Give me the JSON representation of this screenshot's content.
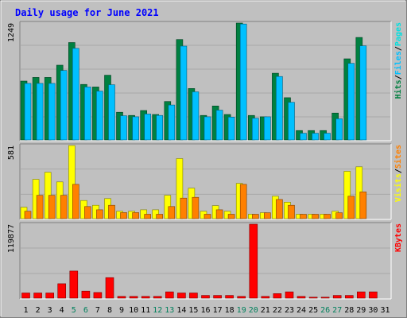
{
  "title": "Daily usage for June 2021",
  "colors": {
    "frame_bg": "#c0c0c0",
    "plot_bg": "#c0c0c0",
    "gridline": "#a8a8a8",
    "title": "#0000ff",
    "hits": "#008040",
    "files": "#00c0ff",
    "pages": "#00e0e0",
    "visits": "#ffff00",
    "sites": "#ff8000",
    "kbytes": "#ff0000",
    "weekend_day": "#00805c",
    "weekday_day": "#000000"
  },
  "chart_data": [
    {
      "type": "bar",
      "name": "hits-files",
      "max_label": "1249",
      "ylim": [
        0,
        1249
      ],
      "categories": [
        "1",
        "2",
        "3",
        "4",
        "5",
        "6",
        "7",
        "8",
        "9",
        "10",
        "11",
        "12",
        "13",
        "14",
        "15",
        "16",
        "17",
        "18",
        "19",
        "20",
        "21",
        "22",
        "23",
        "24",
        "25",
        "26",
        "27",
        "28",
        "29",
        "30",
        "31"
      ],
      "weekend_days": [
        "5",
        "6",
        "12",
        "13",
        "19",
        "20",
        "26",
        "27"
      ],
      "series": [
        {
          "name": "Hits",
          "values": [
            629,
            668,
            668,
            799,
            1041,
            593,
            566,
            692,
            296,
            262,
            314,
            272,
            410,
            1073,
            550,
            262,
            363,
            272,
            1249,
            262,
            247,
            713,
            451,
            100,
            100,
            100,
            287,
            867,
            1095,
            0,
            0
          ]
        },
        {
          "name": "Files",
          "values": [
            604,
            604,
            604,
            742,
            979,
            566,
            522,
            590,
            258,
            247,
            277,
            262,
            373,
            1003,
            514,
            247,
            318,
            244,
            1239,
            232,
            247,
            678,
            402,
            71,
            71,
            71,
            226,
            818,
            1005,
            0,
            0
          ]
        }
      ],
      "legend": [
        "Pages",
        "Files",
        "Hits"
      ],
      "legend_separator": "/"
    },
    {
      "type": "bar",
      "name": "visits-sites",
      "max_label": "581",
      "ylim": [
        0,
        581
      ],
      "categories": [
        "1",
        "2",
        "3",
        "4",
        "5",
        "6",
        "7",
        "8",
        "9",
        "10",
        "11",
        "12",
        "13",
        "14",
        "15",
        "16",
        "17",
        "18",
        "19",
        "20",
        "21",
        "22",
        "23",
        "24",
        "25",
        "26",
        "27",
        "28",
        "29",
        "30",
        "31"
      ],
      "series": [
        {
          "name": "Visits",
          "values": [
            90,
            312,
            368,
            292,
            581,
            144,
            106,
            159,
            59,
            59,
            70,
            70,
            185,
            477,
            242,
            59,
            103,
            59,
            280,
            35,
            47,
            178,
            131,
            35,
            35,
            35,
            59,
            376,
            412,
            0,
            0
          ]
        },
        {
          "name": "Sites",
          "values": [
            59,
            185,
            185,
            185,
            272,
            96,
            70,
            106,
            48,
            48,
            35,
            35,
            96,
            163,
            169,
            35,
            70,
            35,
            272,
            35,
            47,
            152,
            106,
            35,
            35,
            35,
            47,
            178,
            212,
            0,
            0
          ]
        }
      ],
      "legend": [
        "Sites",
        "Visits"
      ],
      "legend_separator": "/"
    },
    {
      "type": "bar",
      "name": "kbytes",
      "max_label": "119877",
      "ylim": [
        0,
        119877
      ],
      "categories": [
        "1",
        "2",
        "3",
        "4",
        "5",
        "6",
        "7",
        "8",
        "9",
        "10",
        "11",
        "12",
        "13",
        "14",
        "15",
        "16",
        "17",
        "18",
        "19",
        "20",
        "21",
        "22",
        "23",
        "24",
        "25",
        "26",
        "27",
        "28",
        "29",
        "30",
        "31"
      ],
      "series": [
        {
          "name": "KBytes",
          "values": [
            8400,
            8400,
            8400,
            23300,
            44000,
            11300,
            9100,
            33300,
            2900,
            2900,
            2900,
            2900,
            10200,
            8400,
            8400,
            4400,
            4400,
            4400,
            2900,
            119877,
            2900,
            7300,
            10200,
            2900,
            1500,
            1500,
            4400,
            4400,
            10200,
            10200,
            0
          ]
        }
      ],
      "legend": [
        "KBytes"
      ]
    }
  ]
}
